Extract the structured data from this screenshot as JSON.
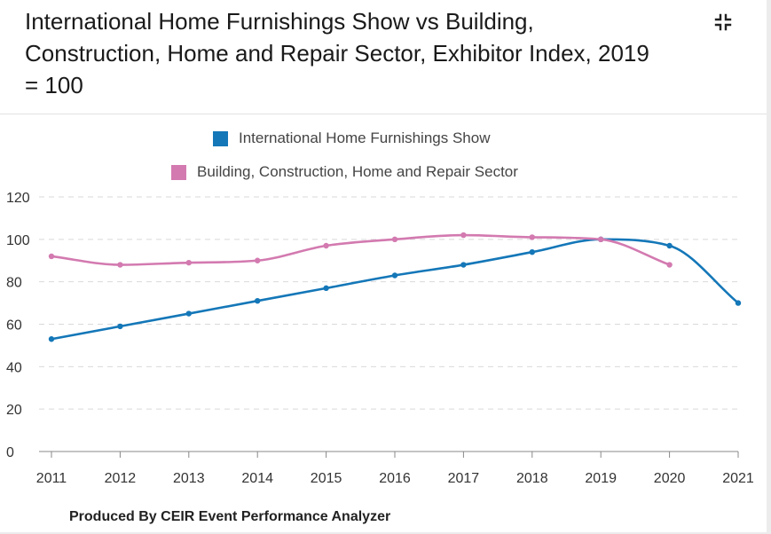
{
  "title": "International Home Furnishings Show vs Building, Construction, Home and Repair Sector, Exhibitor Index, 2019 = 100",
  "footer": "Produced By CEIR Event Performance Analyzer",
  "icons": {
    "collapse": "collapse-icon"
  },
  "colors": {
    "series1": "#1477b8",
    "series2": "#d37ab0",
    "grid": "#d9d9d9",
    "axis": "#888888"
  },
  "legend": [
    {
      "label": "International Home Furnishings Show",
      "color": "#1477b8"
    },
    {
      "label": "Building, Construction, Home and Repair Sector",
      "color": "#d37ab0"
    }
  ],
  "chart_data": {
    "type": "line",
    "title": "International Home Furnishings Show vs Building, Construction, Home and Repair Sector, Exhibitor Index, 2019 = 100",
    "xlabel": "",
    "ylabel": "",
    "categories": [
      "2011",
      "2012",
      "2013",
      "2014",
      "2015",
      "2016",
      "2017",
      "2018",
      "2019",
      "2020",
      "2021"
    ],
    "ylim": [
      0,
      120
    ],
    "yticks": [
      0,
      20,
      40,
      60,
      80,
      100,
      120
    ],
    "grid": true,
    "legend_position": "top-center",
    "series": [
      {
        "name": "International Home Furnishings Show",
        "color": "#1477b8",
        "values": [
          53,
          59,
          65,
          71,
          77,
          83,
          88,
          94,
          100,
          97,
          70
        ]
      },
      {
        "name": "Building, Construction, Home and Repair Sector",
        "color": "#d37ab0",
        "values": [
          92,
          88,
          89,
          90,
          97,
          100,
          102,
          101,
          100,
          88,
          null
        ]
      }
    ]
  }
}
